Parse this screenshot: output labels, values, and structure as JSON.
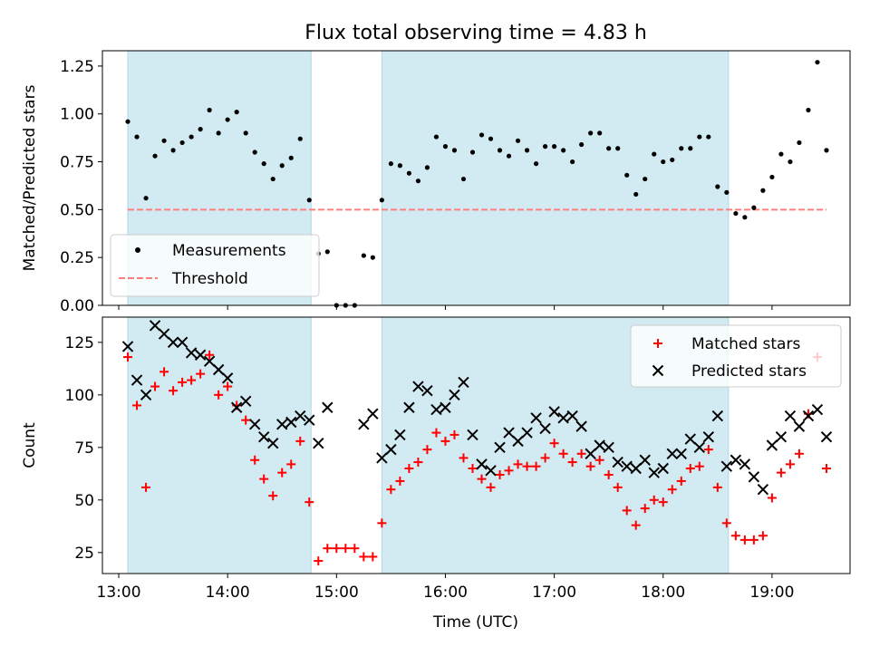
{
  "chart_data": {
    "title": "Flux total observing time = 4.83 h",
    "xlabel": "Time (UTC)",
    "x_ticks": [
      "13:00",
      "14:00",
      "15:00",
      "16:00",
      "17:00",
      "18:00",
      "19:00"
    ],
    "xlim": [
      "12:51",
      "19:43"
    ],
    "shaded_intervals": [
      [
        "13:05",
        "14:46"
      ],
      [
        "15:25",
        "18:36"
      ]
    ],
    "shade_color": "#add8e6",
    "panels": [
      {
        "type": "scatter",
        "ylabel": "Matched/Predicted stars",
        "ylim": [
          0,
          1.33
        ],
        "y_ticks": [
          "0.00",
          "0.25",
          "0.50",
          "0.75",
          "1.00",
          "1.25"
        ],
        "legend_position": "lower-left",
        "threshold": {
          "name": "Threshold",
          "value": 0.5,
          "x_range": [
            "13:05",
            "19:30"
          ],
          "color": "#ff7f7f"
        },
        "series": [
          {
            "name": "Measurements",
            "color": "#000000",
            "points": [
              [
                "13:05",
                0.96
              ],
              [
                "13:10",
                0.88
              ],
              [
                "13:15",
                0.56
              ],
              [
                "13:20",
                0.78
              ],
              [
                "13:25",
                0.86
              ],
              [
                "13:30",
                0.81
              ],
              [
                "13:35",
                0.85
              ],
              [
                "13:40",
                0.88
              ],
              [
                "13:45",
                0.92
              ],
              [
                "13:50",
                1.02
              ],
              [
                "13:55",
                0.9
              ],
              [
                "14:00",
                0.97
              ],
              [
                "14:05",
                1.01
              ],
              [
                "14:10",
                0.9
              ],
              [
                "14:15",
                0.8
              ],
              [
                "14:20",
                0.74
              ],
              [
                "14:25",
                0.66
              ],
              [
                "14:30",
                0.73
              ],
              [
                "14:35",
                0.77
              ],
              [
                "14:40",
                0.87
              ],
              [
                "14:45",
                0.55
              ],
              [
                "14:50",
                0.27
              ],
              [
                "14:55",
                0.28
              ],
              [
                "15:00",
                0.0
              ],
              [
                "15:05",
                0.0
              ],
              [
                "15:10",
                0.0
              ],
              [
                "15:15",
                0.26
              ],
              [
                "15:20",
                0.25
              ],
              [
                "15:25",
                0.55
              ],
              [
                "15:30",
                0.74
              ],
              [
                "15:35",
                0.73
              ],
              [
                "15:40",
                0.69
              ],
              [
                "15:45",
                0.65
              ],
              [
                "15:50",
                0.72
              ],
              [
                "15:55",
                0.88
              ],
              [
                "16:00",
                0.83
              ],
              [
                "16:05",
                0.81
              ],
              [
                "16:10",
                0.66
              ],
              [
                "16:15",
                0.8
              ],
              [
                "16:20",
                0.89
              ],
              [
                "16:25",
                0.87
              ],
              [
                "16:30",
                0.81
              ],
              [
                "16:35",
                0.78
              ],
              [
                "16:40",
                0.86
              ],
              [
                "16:45",
                0.81
              ],
              [
                "16:50",
                0.74
              ],
              [
                "16:55",
                0.83
              ],
              [
                "17:00",
                0.83
              ],
              [
                "17:05",
                0.81
              ],
              [
                "17:10",
                0.75
              ],
              [
                "17:15",
                0.84
              ],
              [
                "17:20",
                0.9
              ],
              [
                "17:25",
                0.9
              ],
              [
                "17:30",
                0.82
              ],
              [
                "17:35",
                0.82
              ],
              [
                "17:40",
                0.68
              ],
              [
                "17:45",
                0.58
              ],
              [
                "17:50",
                0.66
              ],
              [
                "17:55",
                0.79
              ],
              [
                "18:00",
                0.75
              ],
              [
                "18:05",
                0.76
              ],
              [
                "18:10",
                0.82
              ],
              [
                "18:15",
                0.82
              ],
              [
                "18:20",
                0.88
              ],
              [
                "18:25",
                0.88
              ],
              [
                "18:30",
                0.62
              ],
              [
                "18:35",
                0.59
              ],
              [
                "18:40",
                0.48
              ],
              [
                "18:45",
                0.46
              ],
              [
                "18:50",
                0.51
              ],
              [
                "18:55",
                0.6
              ],
              [
                "19:00",
                0.67
              ],
              [
                "19:05",
                0.79
              ],
              [
                "19:10",
                0.75
              ],
              [
                "19:15",
                0.85
              ],
              [
                "19:20",
                1.02
              ],
              [
                "19:25",
                1.27
              ],
              [
                "19:30",
                0.81
              ]
            ]
          }
        ]
      },
      {
        "type": "scatter",
        "ylabel": "Count",
        "ylim": [
          15,
          137
        ],
        "y_ticks": [
          "25",
          "50",
          "75",
          "100",
          "125"
        ],
        "legend_position": "top-right",
        "series": [
          {
            "name": "Matched stars",
            "marker": "+",
            "color": "#ff0000",
            "points": [
              [
                "13:05",
                118
              ],
              [
                "13:10",
                95
              ],
              [
                "13:15",
                56
              ],
              [
                "13:20",
                104
              ],
              [
                "13:25",
                111
              ],
              [
                "13:30",
                102
              ],
              [
                "13:35",
                106
              ],
              [
                "13:40",
                107
              ],
              [
                "13:45",
                110
              ],
              [
                "13:50",
                119
              ],
              [
                "13:55",
                100
              ],
              [
                "14:00",
                104
              ],
              [
                "14:05",
                95
              ],
              [
                "14:10",
                88
              ],
              [
                "14:15",
                69
              ],
              [
                "14:20",
                60
              ],
              [
                "14:25",
                52
              ],
              [
                "14:30",
                63
              ],
              [
                "14:35",
                67
              ],
              [
                "14:40",
                78
              ],
              [
                "14:45",
                49
              ],
              [
                "14:50",
                21
              ],
              [
                "14:55",
                27
              ],
              [
                "15:00",
                27
              ],
              [
                "15:05",
                27
              ],
              [
                "15:10",
                27
              ],
              [
                "15:15",
                23
              ],
              [
                "15:20",
                23
              ],
              [
                "15:25",
                39
              ],
              [
                "15:30",
                55
              ],
              [
                "15:35",
                59
              ],
              [
                "15:40",
                65
              ],
              [
                "15:45",
                68
              ],
              [
                "15:50",
                74
              ],
              [
                "15:55",
                82
              ],
              [
                "16:00",
                78
              ],
              [
                "16:05",
                81
              ],
              [
                "16:10",
                70
              ],
              [
                "16:15",
                65
              ],
              [
                "16:20",
                60
              ],
              [
                "16:25",
                56
              ],
              [
                "16:30",
                62
              ],
              [
                "16:35",
                64
              ],
              [
                "16:40",
                67
              ],
              [
                "16:45",
                66
              ],
              [
                "16:50",
                66
              ],
              [
                "16:55",
                70
              ],
              [
                "17:00",
                77
              ],
              [
                "17:05",
                72
              ],
              [
                "17:10",
                68
              ],
              [
                "17:15",
                72
              ],
              [
                "17:20",
                66
              ],
              [
                "17:25",
                69
              ],
              [
                "17:30",
                62
              ],
              [
                "17:35",
                56
              ],
              [
                "17:40",
                45
              ],
              [
                "17:45",
                38
              ],
              [
                "17:50",
                46
              ],
              [
                "17:55",
                50
              ],
              [
                "18:00",
                49
              ],
              [
                "18:05",
                55
              ],
              [
                "18:10",
                59
              ],
              [
                "18:15",
                65
              ],
              [
                "18:20",
                66
              ],
              [
                "18:25",
                74
              ],
              [
                "18:30",
                56
              ],
              [
                "18:35",
                39
              ],
              [
                "18:40",
                33
              ],
              [
                "18:45",
                31
              ],
              [
                "18:50",
                31
              ],
              [
                "18:55",
                33
              ],
              [
                "19:00",
                51
              ],
              [
                "19:05",
                63
              ],
              [
                "19:10",
                67
              ],
              [
                "19:15",
                72
              ],
              [
                "19:20",
                91
              ],
              [
                "19:25",
                118
              ],
              [
                "19:30",
                65
              ]
            ]
          },
          {
            "name": "Predicted stars",
            "marker": "x",
            "color": "#000000",
            "points": [
              [
                "13:05",
                123
              ],
              [
                "13:10",
                107
              ],
              [
                "13:15",
                100
              ],
              [
                "13:20",
                133
              ],
              [
                "13:25",
                129
              ],
              [
                "13:30",
                125
              ],
              [
                "13:35",
                125
              ],
              [
                "13:40",
                120
              ],
              [
                "13:45",
                119
              ],
              [
                "13:50",
                116
              ],
              [
                "13:55",
                112
              ],
              [
                "14:00",
                108
              ],
              [
                "14:05",
                94
              ],
              [
                "14:10",
                97
              ],
              [
                "14:15",
                86
              ],
              [
                "14:20",
                80
              ],
              [
                "14:25",
                77
              ],
              [
                "14:30",
                86
              ],
              [
                "14:35",
                87
              ],
              [
                "14:40",
                90
              ],
              [
                "14:45",
                88
              ],
              [
                "14:50",
                77
              ],
              [
                "14:55",
                94
              ],
              [
                "15:15",
                86
              ],
              [
                "15:20",
                91
              ],
              [
                "15:25",
                70
              ],
              [
                "15:30",
                74
              ],
              [
                "15:35",
                81
              ],
              [
                "15:40",
                94
              ],
              [
                "15:45",
                104
              ],
              [
                "15:50",
                102
              ],
              [
                "15:55",
                93
              ],
              [
                "16:00",
                94
              ],
              [
                "16:05",
                100
              ],
              [
                "16:10",
                106
              ],
              [
                "16:15",
                81
              ],
              [
                "16:20",
                67
              ],
              [
                "16:25",
                64
              ],
              [
                "16:30",
                75
              ],
              [
                "16:35",
                82
              ],
              [
                "16:40",
                78
              ],
              [
                "16:45",
                82
              ],
              [
                "16:50",
                89
              ],
              [
                "16:55",
                84
              ],
              [
                "17:00",
                92
              ],
              [
                "17:05",
                89
              ],
              [
                "17:10",
                90
              ],
              [
                "17:15",
                85
              ],
              [
                "17:20",
                72
              ],
              [
                "17:25",
                76
              ],
              [
                "17:30",
                75
              ],
              [
                "17:35",
                68
              ],
              [
                "17:40",
                66
              ],
              [
                "17:45",
                65
              ],
              [
                "17:50",
                69
              ],
              [
                "17:55",
                63
              ],
              [
                "18:00",
                65
              ],
              [
                "18:05",
                72
              ],
              [
                "18:10",
                72
              ],
              [
                "18:15",
                79
              ],
              [
                "18:20",
                75
              ],
              [
                "18:25",
                80
              ],
              [
                "18:30",
                90
              ],
              [
                "18:35",
                66
              ],
              [
                "18:40",
                69
              ],
              [
                "18:45",
                67
              ],
              [
                "18:50",
                61
              ],
              [
                "18:55",
                55
              ],
              [
                "19:00",
                76
              ],
              [
                "19:05",
                80
              ],
              [
                "19:10",
                90
              ],
              [
                "19:15",
                85
              ],
              [
                "19:20",
                90
              ],
              [
                "19:25",
                93
              ],
              [
                "19:30",
                80
              ]
            ]
          }
        ]
      }
    ]
  }
}
